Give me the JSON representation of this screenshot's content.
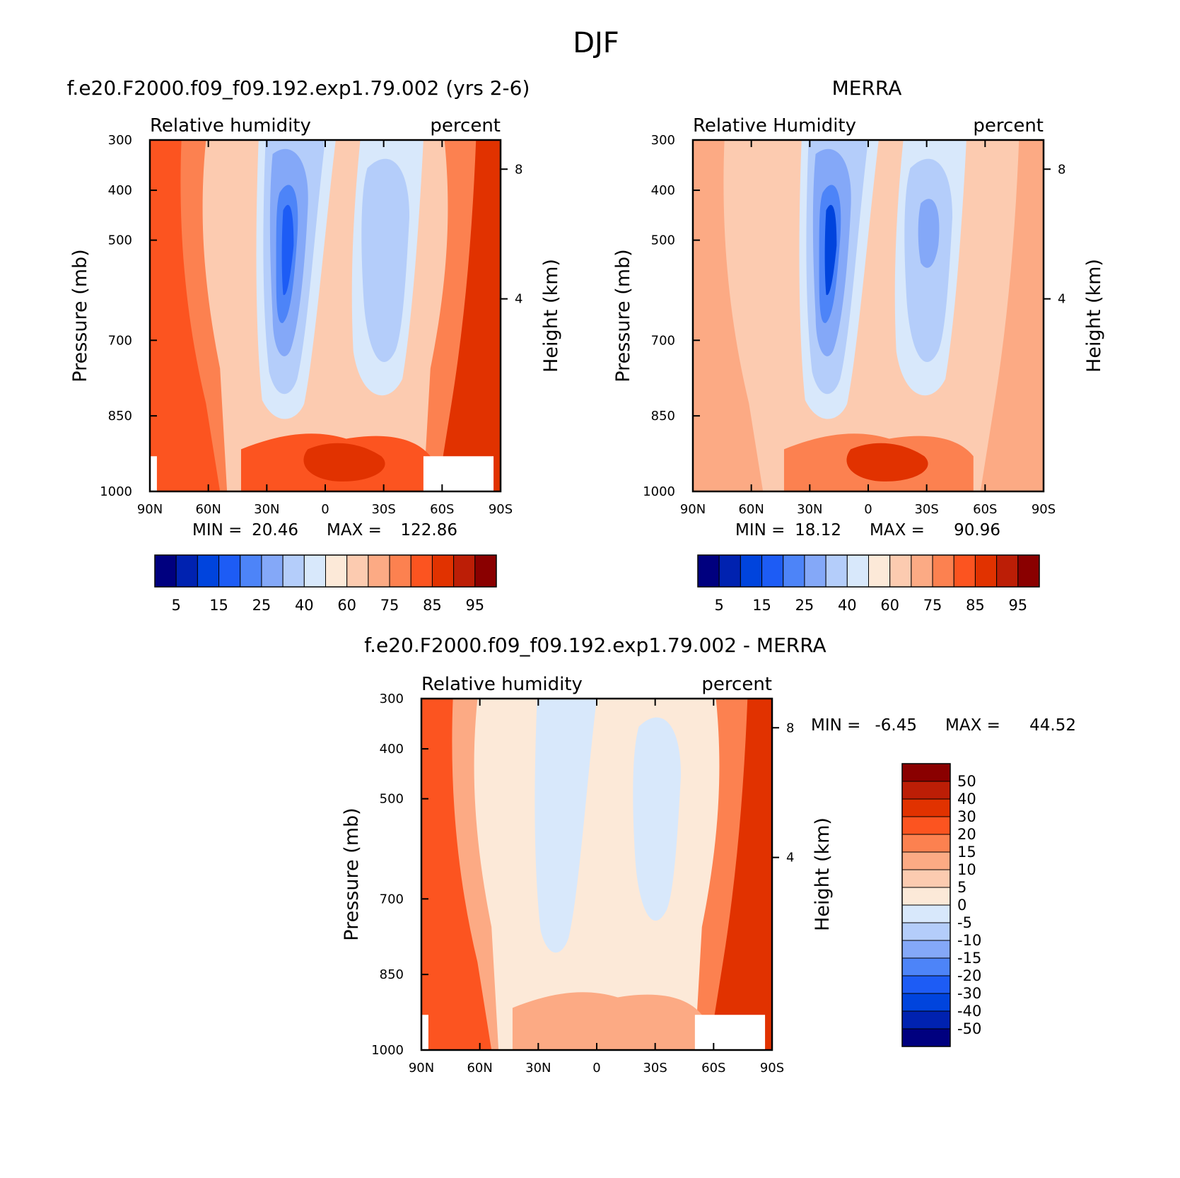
{
  "figure_title": "DJF",
  "chart_data": [
    {
      "type": "heatmap",
      "title": "f.e20.F2000.f09_f09.192.exp1.79.002 (yrs 2-6)",
      "left_label": "Relative humidity",
      "right_label": "percent",
      "xlabel": "",
      "ylabel": "Pressure (mb)",
      "y2label": "Height (km)",
      "x_ticks": [
        "90N",
        "60N",
        "30N",
        "0",
        "30S",
        "60S",
        "90S"
      ],
      "y_ticks": [
        "300",
        "400",
        "500",
        "700",
        "850",
        "1000"
      ],
      "y2_ticks": [
        "8",
        "4"
      ],
      "min_label": "MIN =",
      "min_value": "20.46",
      "max_label": "MAX =",
      "max_value": "122.86",
      "colorbar_orientation": "horizontal",
      "colorbar_labels": [
        "5",
        "15",
        "25",
        "40",
        "60",
        "75",
        "85",
        "95"
      ],
      "colorbar_colors": [
        "#00007f",
        "#0022b0",
        "#0044dd",
        "#1d5cf5",
        "#4d84f8",
        "#84a8f8",
        "#b4cdfa",
        "#d8e8fb",
        "#fce9d8",
        "#fccbb0",
        "#fcaa84",
        "#fc8150",
        "#fc5420",
        "#e13200",
        "#bc1e06",
        "#8a0000"
      ],
      "grid": false
    },
    {
      "type": "heatmap",
      "title": "MERRA",
      "left_label": "Relative Humidity",
      "right_label": "percent",
      "xlabel": "",
      "ylabel": "Pressure (mb)",
      "y2label": "Height (km)",
      "x_ticks": [
        "90N",
        "60N",
        "30N",
        "0",
        "30S",
        "60S",
        "90S"
      ],
      "y_ticks": [
        "300",
        "400",
        "500",
        "700",
        "850",
        "1000"
      ],
      "y2_ticks": [
        "8",
        "4"
      ],
      "min_label": "MIN =",
      "min_value": "18.12",
      "max_label": "MAX =",
      "max_value": "90.96",
      "colorbar_orientation": "horizontal",
      "colorbar_labels": [
        "5",
        "15",
        "25",
        "40",
        "60",
        "75",
        "85",
        "95"
      ],
      "colorbar_colors": [
        "#00007f",
        "#0022b0",
        "#0044dd",
        "#1d5cf5",
        "#4d84f8",
        "#84a8f8",
        "#b4cdfa",
        "#d8e8fb",
        "#fce9d8",
        "#fccbb0",
        "#fcaa84",
        "#fc8150",
        "#fc5420",
        "#e13200",
        "#bc1e06",
        "#8a0000"
      ],
      "grid": false
    },
    {
      "type": "heatmap",
      "title": "f.e20.F2000.f09_f09.192.exp1.79.002 - MERRA",
      "left_label": "Relative humidity",
      "right_label": "percent",
      "xlabel": "",
      "ylabel": "Pressure (mb)",
      "y2label": "Height (km)",
      "x_ticks": [
        "90N",
        "60N",
        "30N",
        "0",
        "30S",
        "60S",
        "90S"
      ],
      "y_ticks": [
        "300",
        "400",
        "500",
        "700",
        "850",
        "1000"
      ],
      "y2_ticks": [
        "8",
        "4"
      ],
      "min_label": "MIN =",
      "min_value": "-6.45",
      "max_label": "MAX =",
      "max_value": "44.52",
      "colorbar_orientation": "vertical",
      "colorbar_labels": [
        "50",
        "40",
        "30",
        "20",
        "15",
        "10",
        "5",
        "0",
        "-5",
        "-10",
        "-15",
        "-20",
        "-30",
        "-40",
        "-50"
      ],
      "colorbar_colors": [
        "#8a0000",
        "#bc1e06",
        "#e13200",
        "#fc5420",
        "#fc8150",
        "#fcaa84",
        "#fccbb0",
        "#fce9d8",
        "#d8e8fb",
        "#b4cdfa",
        "#84a8f8",
        "#4d84f8",
        "#1d5cf5",
        "#0044dd",
        "#0022b0",
        "#00007f"
      ],
      "grid": false
    }
  ]
}
